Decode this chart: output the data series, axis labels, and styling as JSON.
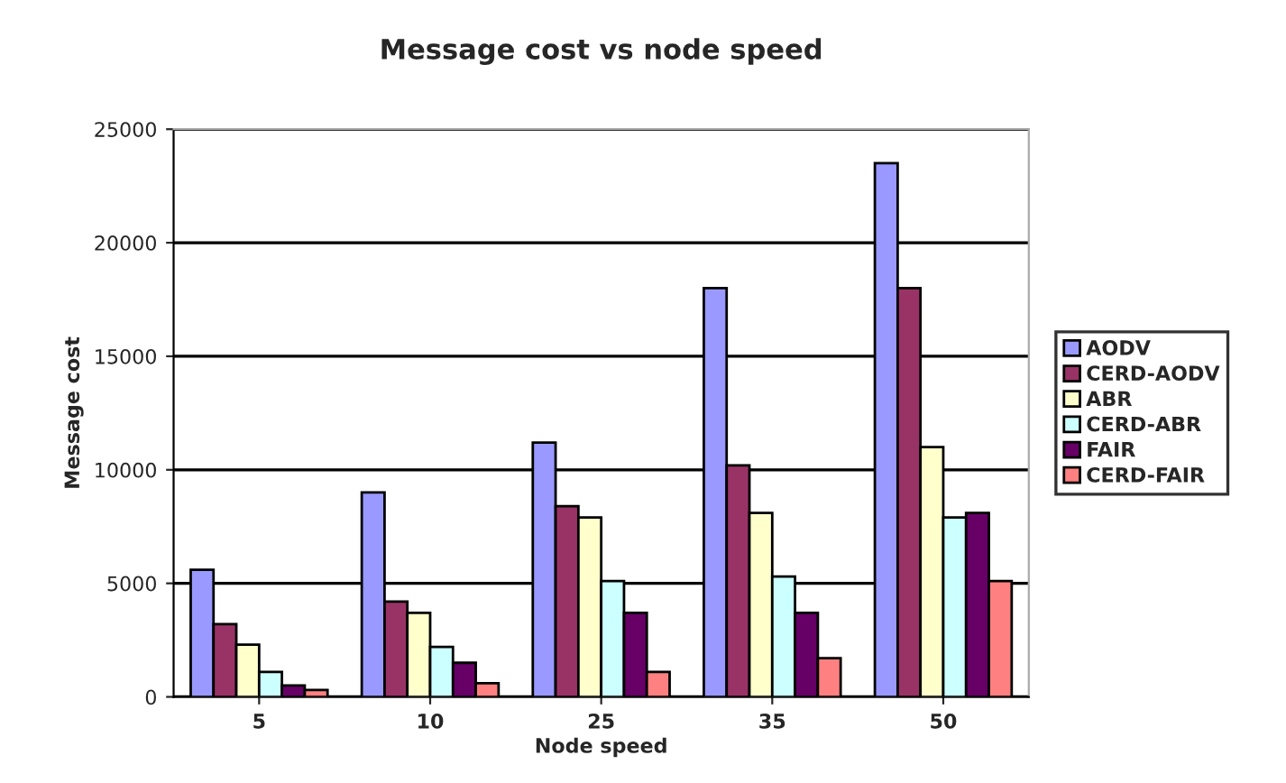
{
  "chart_data": {
    "type": "bar",
    "title": "Message cost vs node speed",
    "xlabel": "Node speed",
    "ylabel": "Message cost",
    "categories": [
      "5",
      "10",
      "25",
      "35",
      "50"
    ],
    "series": [
      {
        "name": "AODV",
        "color": "#9999ff",
        "values": [
          5600,
          9000,
          11200,
          18000,
          23500
        ]
      },
      {
        "name": "CERD-AODV",
        "color": "#993366",
        "values": [
          3200,
          4200,
          8400,
          10200,
          18000
        ]
      },
      {
        "name": "ABR",
        "color": "#ffffcc",
        "values": [
          2300,
          3700,
          7900,
          8100,
          11000
        ]
      },
      {
        "name": "CERD-ABR",
        "color": "#ccffff",
        "values": [
          1100,
          2200,
          5100,
          5300,
          7900
        ]
      },
      {
        "name": "FAIR",
        "color": "#660066",
        "values": [
          500,
          1500,
          3700,
          3700,
          8100
        ]
      },
      {
        "name": "CERD-FAIR",
        "color": "#ff8080",
        "values": [
          300,
          600,
          1100,
          1700,
          5100
        ]
      }
    ],
    "ylim": [
      0,
      25000
    ],
    "yticks": [
      0,
      5000,
      10000,
      15000,
      20000,
      25000
    ],
    "grid": "y",
    "legend": "right"
  }
}
